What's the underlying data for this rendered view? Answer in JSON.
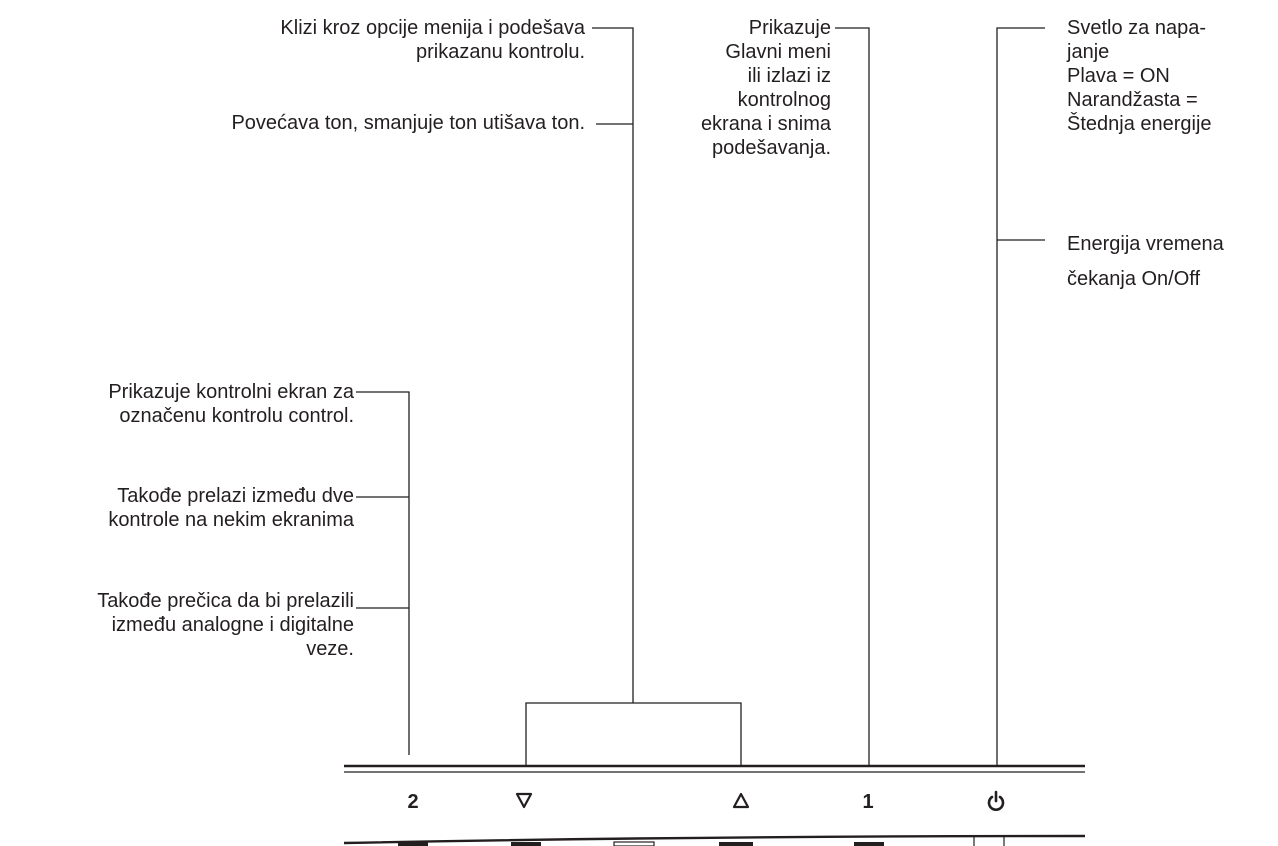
{
  "callouts": {
    "scroll": "Klizi kroz opcije menija i podešava\nprikazanu kontrolu.",
    "volume": "Povećava ton, smanjuje ton utišava ton.",
    "menu": "Prikazuje\nGlavni meni\nili izlazi iz\nkontrolnog\nekrana i snima\npodešavanja.",
    "power_light": "Svetlo za napa-\njanje\nPlava = ON\nNarandžasta =\nŠtednja energije",
    "standby": "Energija vremena\nčekanja On/Off",
    "control_screen": "Prikazuje kontrolni ekran za\noznačenu kontrolu  control.",
    "toggle": "Takođe prelazi između dve\nkontrole na nekim ekranima",
    "shortcut": "Takođe prečica da bi prelazili\nizmeđu analogne i digitalne\nveze."
  },
  "buttons": {
    "two": "2",
    "down_icon": "down-triangle-icon",
    "up_icon": "up-triangle-icon",
    "one": "1",
    "power_icon": "power-icon"
  },
  "colors": {
    "ink": "#231f20",
    "background": "#ffffff"
  }
}
